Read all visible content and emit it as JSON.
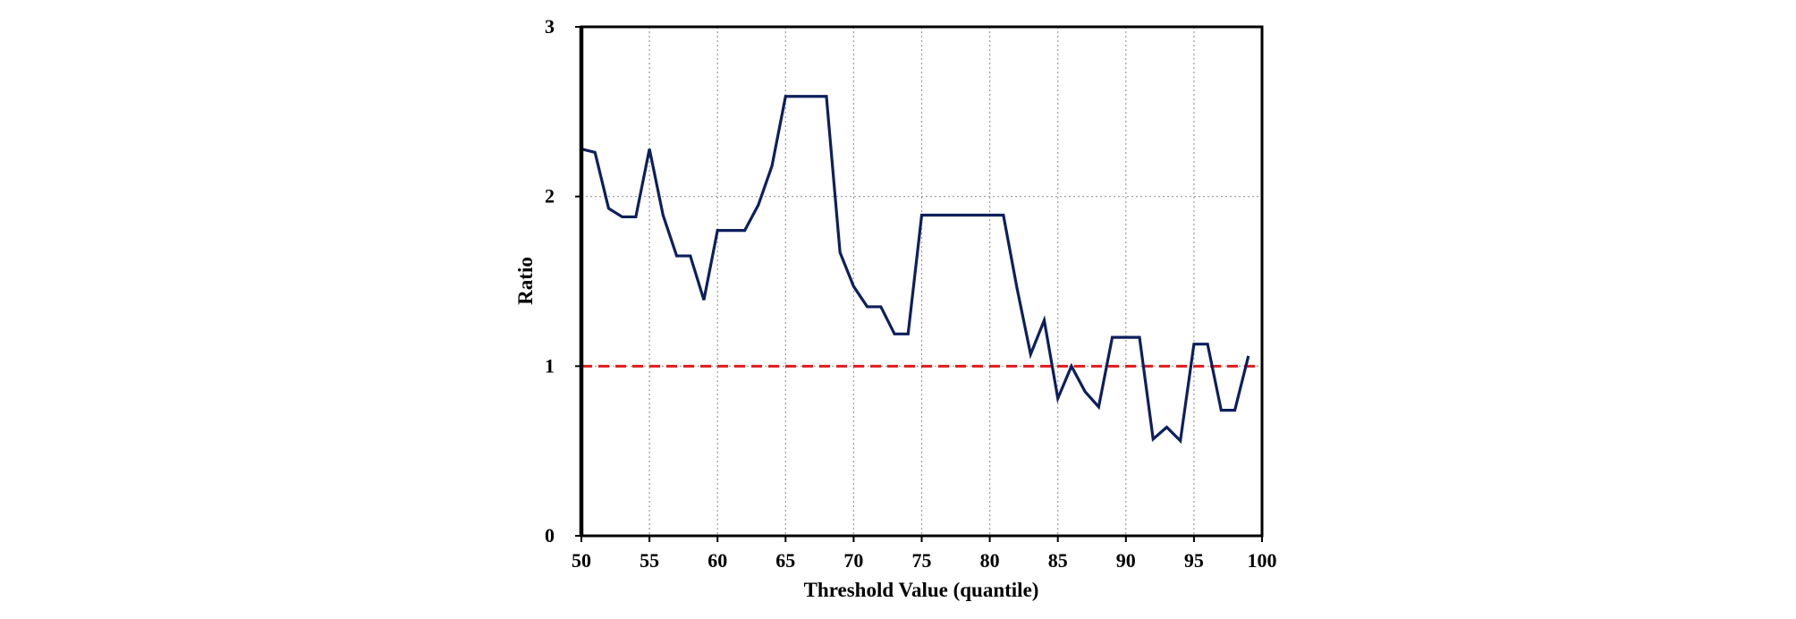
{
  "chart_data": {
    "type": "line",
    "title": "",
    "xlabel": "Threshold Value (quantile)",
    "ylabel": "Ratio",
    "xlim": [
      50,
      100
    ],
    "ylim": [
      0,
      3
    ],
    "x_ticks": [
      50,
      55,
      60,
      65,
      70,
      75,
      80,
      85,
      90,
      95,
      100
    ],
    "y_ticks": [
      0,
      1,
      2,
      3
    ],
    "grid": true,
    "legend": "none",
    "series": [
      {
        "color": "#0d1f5c",
        "x": [
          50,
          51,
          52,
          53,
          54,
          55,
          56,
          57,
          58,
          59,
          60,
          61,
          62,
          63,
          64,
          65,
          66,
          67,
          68,
          69,
          70,
          71,
          72,
          73,
          74,
          75,
          76,
          77,
          78,
          79,
          80,
          81,
          82,
          83,
          84,
          85,
          86,
          87,
          88,
          89,
          90,
          91,
          92,
          93,
          94,
          95,
          96,
          97,
          98,
          99
        ],
        "y": [
          2.28,
          2.26,
          1.93,
          1.88,
          1.88,
          2.28,
          1.89,
          1.65,
          1.65,
          1.39,
          1.8,
          1.8,
          1.8,
          1.95,
          2.18,
          2.59,
          2.59,
          2.59,
          2.59,
          1.67,
          1.47,
          1.35,
          1.35,
          1.19,
          1.19,
          1.89,
          1.89,
          1.89,
          1.89,
          1.89,
          1.89,
          1.89,
          1.46,
          1.07,
          1.27,
          0.81,
          1.0,
          0.85,
          0.76,
          1.17,
          1.17,
          1.17,
          0.57,
          0.64,
          0.56,
          1.13,
          1.13,
          0.74,
          0.74,
          1.06
        ]
      }
    ],
    "reference_line": {
      "y": 1,
      "color": "#e31a1c",
      "style": "dashed"
    }
  }
}
